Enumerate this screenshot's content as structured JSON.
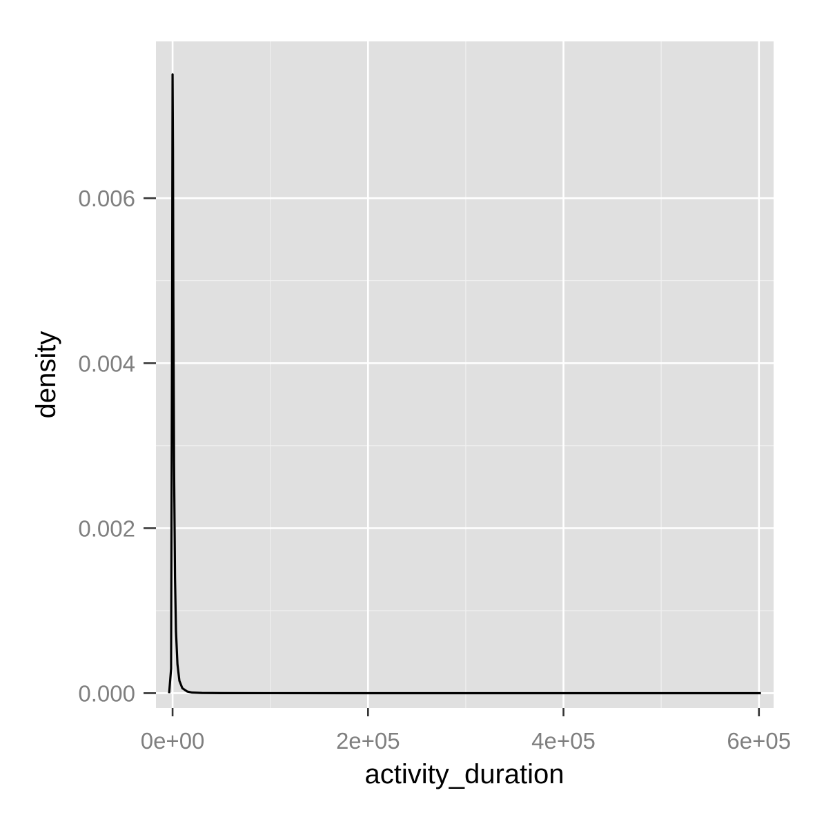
{
  "chart_data": {
    "type": "line",
    "title": "",
    "xlabel": "activity_duration",
    "ylabel": "density",
    "xlim": [
      -17000,
      615000
    ],
    "ylim": [
      -0.00018,
      0.0079
    ],
    "x_ticks": [
      0,
      200000,
      400000,
      600000
    ],
    "x_tick_labels": [
      "0e+00",
      "2e+05",
      "4e+05",
      "6e+05"
    ],
    "y_ticks": [
      0,
      0.002,
      0.004,
      0.006
    ],
    "y_tick_labels": [
      "0.000",
      "0.002",
      "0.004",
      "0.006"
    ],
    "grid": true,
    "legend": "none",
    "series": [
      {
        "x": [
          -3500,
          -1500,
          -500,
          0,
          400,
          800,
          1500,
          2500,
          3500,
          5000,
          7000,
          10000,
          15000,
          20000,
          30000,
          50000,
          100000,
          200000,
          300000,
          400000,
          500000,
          600000,
          602000
        ],
        "y": [
          0,
          0.0003,
          0.0045,
          0.0075,
          0.0066,
          0.0048,
          0.0028,
          0.0014,
          0.00075,
          0.00035,
          0.00015,
          6e-05,
          2e-05,
          8e-06,
          3e-06,
          1e-06,
          3e-07,
          1e-07,
          5e-08,
          3e-08,
          2e-08,
          1e-08,
          0
        ]
      }
    ],
    "colors": {
      "panel_background": "#e0e0e0",
      "major_grid": "#ffffff",
      "minor_grid": "#f0f0f0",
      "line": "#000000",
      "tick_text": "#7f7f7f",
      "axis_title": "#000000"
    }
  }
}
